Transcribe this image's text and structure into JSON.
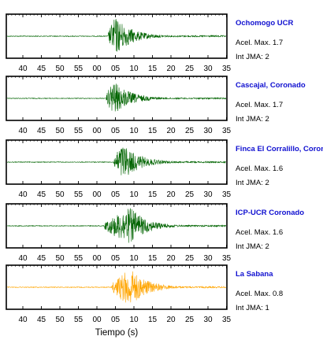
{
  "chart_data": {
    "type": "line",
    "xlabel": "Tiempo (s)",
    "acel_label": "Acel. Max.",
    "jma_label": "Int JMA:",
    "tick_labels": [
      "40",
      "45",
      "50",
      "55",
      "00",
      "05",
      "10",
      "15",
      "20",
      "25",
      "30",
      "35"
    ],
    "panels": [
      {
        "station": "Ochomogo UCR",
        "acel_max": "1.7",
        "int_jma": "2",
        "color": "#006400",
        "tick_labels": [
          "40",
          "45",
          "50",
          "55",
          "00",
          "05",
          "10",
          "15",
          "20",
          "25",
          "30",
          "35"
        ],
        "onset": 3.0,
        "peak_time": 5.0,
        "rel_amplitude": 0.95
      },
      {
        "station": "Cascajal, Coronado",
        "acel_max": "1.7",
        "int_jma": "2",
        "color": "#006400",
        "tick_labels": [
          "40",
          "45",
          "50",
          "55",
          "00",
          "05",
          "10",
          "15",
          "20",
          "25",
          "30",
          "35"
        ],
        "onset": 2.5,
        "peak_time": 4.5,
        "rel_amplitude": 0.85
      },
      {
        "station": "Finca El Corralillo, Coronado",
        "acel_max": "1.6",
        "int_jma": "2",
        "color": "#006400",
        "tick_labels": [
          "35",
          "40",
          "45",
          "50",
          "55",
          "00",
          "05",
          "10",
          "15",
          "20",
          "25",
          "30",
          "35"
        ],
        "onset": 4.5,
        "peak_time": 7.0,
        "rel_amplitude": 0.9
      },
      {
        "station": "ICP-UCR Coronado",
        "acel_max": "1.6",
        "int_jma": "2",
        "color": "#006400",
        "tick_labels": [
          "40",
          "45",
          "50",
          "55",
          "00",
          "05",
          "10",
          "15",
          "20",
          "25",
          "30",
          "35"
        ],
        "onset": 2.0,
        "peak_time": 9.0,
        "rel_amplitude": 0.9
      },
      {
        "station": "La Sabana",
        "acel_max": "0.8",
        "int_jma": "1",
        "color": "#ffa500",
        "tick_labels": [
          "40",
          "45",
          "50",
          "55",
          "00",
          "05",
          "10",
          "15",
          "20",
          "25",
          "30",
          "35"
        ],
        "onset": 4.0,
        "peak_time": 9.0,
        "rel_amplitude": 0.95
      }
    ]
  }
}
